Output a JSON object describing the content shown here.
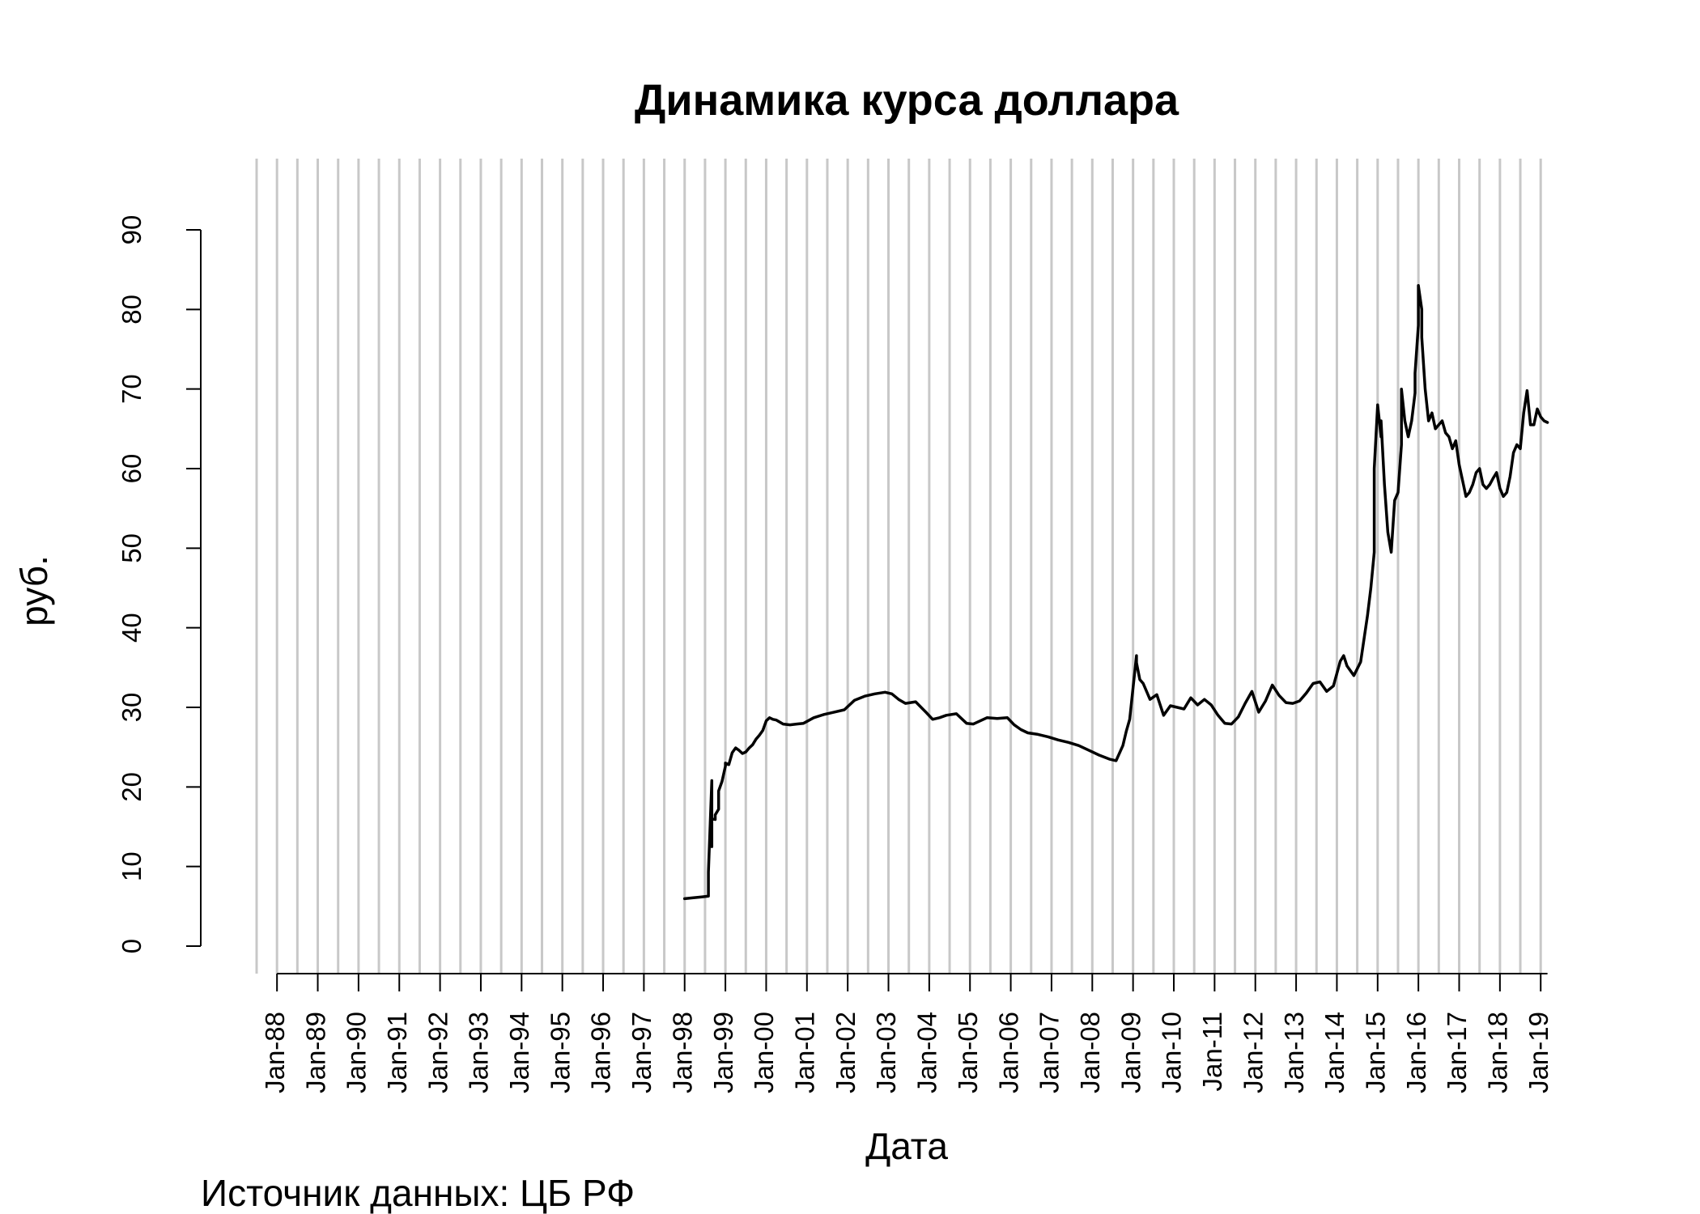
{
  "chart_data": {
    "type": "line",
    "title": "Динамика курса доллара",
    "xlabel": "Дата",
    "ylabel": "руб.",
    "caption": "Источник данных: ЦБ РФ",
    "ylim": [
      0,
      90
    ],
    "yticks": [
      0,
      10,
      20,
      30,
      40,
      50,
      60,
      70,
      80,
      90
    ],
    "xlim": [
      "1987-07",
      "2019-05"
    ],
    "x_axis_range": [
      "1988-01",
      "2019-03"
    ],
    "xticks": [
      "Jan-88",
      "Jan-89",
      "Jan-90",
      "Jan-91",
      "Jan-92",
      "Jan-93",
      "Jan-94",
      "Jan-95",
      "Jan-96",
      "Jan-97",
      "Jan-98",
      "Jan-99",
      "Jan-00",
      "Jan-01",
      "Jan-02",
      "Jan-03",
      "Jan-04",
      "Jan-05",
      "Jan-06",
      "Jan-07",
      "Jan-08",
      "Jan-09",
      "Jan-10",
      "Jan-11",
      "Jan-12",
      "Jan-13",
      "Jan-14",
      "Jan-15",
      "Jan-16",
      "Jan-17",
      "Jan-18",
      "Jan-19"
    ],
    "grid": "vertical lines every 6 months",
    "colors": {
      "line": "#000000",
      "grid": "#c8c8c8",
      "axis": "#000000"
    },
    "series": [
      {
        "x": [
          "1998-01",
          "1998-03",
          "1998-06",
          "1998-08",
          "1998-08",
          "1998-08",
          "1998-09",
          "1998-09",
          "1998-09",
          "1998-10",
          "1998-10",
          "1998-11",
          "1998-11",
          "1998-12",
          "1999-01",
          "1999-01",
          "1999-02",
          "1999-03",
          "1999-04",
          "1999-05",
          "1999-06",
          "1999-07",
          "1999-08",
          "1999-09",
          "1999-10",
          "1999-11",
          "1999-12",
          "2000-01",
          "2000-02",
          "2000-03",
          "2000-04",
          "2000-06",
          "2000-08",
          "2000-10",
          "2000-12",
          "2001-03",
          "2001-06",
          "2001-09",
          "2001-12",
          "2002-03",
          "2002-06",
          "2002-09",
          "2002-12",
          "2003-02",
          "2003-04",
          "2003-06",
          "2003-09",
          "2003-12",
          "2004-02",
          "2004-04",
          "2004-06",
          "2004-09",
          "2004-12",
          "2005-02",
          "2005-04",
          "2005-06",
          "2005-09",
          "2005-12",
          "2006-02",
          "2006-04",
          "2006-06",
          "2006-09",
          "2006-12",
          "2007-03",
          "2007-06",
          "2007-09",
          "2007-12",
          "2008-03",
          "2008-06",
          "2008-08",
          "2008-10",
          "2008-11",
          "2008-12",
          "2009-01",
          "2009-02",
          "2009-02",
          "2009-03",
          "2009-04",
          "2009-06",
          "2009-08",
          "2009-10",
          "2009-12",
          "2010-02",
          "2010-04",
          "2010-06",
          "2010-08",
          "2010-10",
          "2010-12",
          "2011-02",
          "2011-04",
          "2011-06",
          "2011-08",
          "2011-10",
          "2011-12",
          "2012-02",
          "2012-04",
          "2012-06",
          "2012-08",
          "2012-10",
          "2012-12",
          "2013-02",
          "2013-04",
          "2013-06",
          "2013-08",
          "2013-10",
          "2013-12",
          "2014-02",
          "2014-03",
          "2014-04",
          "2014-06",
          "2014-08",
          "2014-10",
          "2014-11",
          "2014-12",
          "2014-12",
          "2015-01",
          "2015-02",
          "2015-02",
          "2015-03",
          "2015-04",
          "2015-05",
          "2015-06",
          "2015-07",
          "2015-08",
          "2015-08",
          "2015-09",
          "2015-10",
          "2015-11",
          "2015-12",
          "2015-12",
          "2016-01",
          "2016-01",
          "2016-02",
          "2016-02",
          "2016-03",
          "2016-04",
          "2016-05",
          "2016-06",
          "2016-07",
          "2016-08",
          "2016-09",
          "2016-10",
          "2016-11",
          "2016-12",
          "2017-01",
          "2017-02",
          "2017-03",
          "2017-04",
          "2017-05",
          "2017-06",
          "2017-07",
          "2017-08",
          "2017-09",
          "2017-10",
          "2017-11",
          "2017-12",
          "2018-01",
          "2018-02",
          "2018-03",
          "2018-04",
          "2018-05",
          "2018-06",
          "2018-07",
          "2018-08",
          "2018-09",
          "2018-10",
          "2018-11",
          "2018-12",
          "2019-01",
          "2019-02",
          "2019-03"
        ],
        "values": [
          5.96,
          6.05,
          6.18,
          6.28,
          7.9,
          9.3,
          20.8,
          12.5,
          16.0,
          15.9,
          16.5,
          17.2,
          19.5,
          20.7,
          22.6,
          23.0,
          22.8,
          24.3,
          24.9,
          24.6,
          24.2,
          24.4,
          24.9,
          25.3,
          26.0,
          26.5,
          27.1,
          28.3,
          28.7,
          28.5,
          28.4,
          27.9,
          27.8,
          27.9,
          28.0,
          28.7,
          29.1,
          29.4,
          29.7,
          30.9,
          31.4,
          31.7,
          31.9,
          31.7,
          31.0,
          30.5,
          30.7,
          29.4,
          28.5,
          28.7,
          29.0,
          29.2,
          28.0,
          27.9,
          28.3,
          28.7,
          28.6,
          28.7,
          27.8,
          27.2,
          26.8,
          26.6,
          26.3,
          25.9,
          25.6,
          25.2,
          24.6,
          24.0,
          23.5,
          23.3,
          25.2,
          27.0,
          28.5,
          32.5,
          36.5,
          35.6,
          33.5,
          33.0,
          31.0,
          31.6,
          29.0,
          30.2,
          30.0,
          29.8,
          31.2,
          30.3,
          31.0,
          30.3,
          29.0,
          28.0,
          27.9,
          28.8,
          30.5,
          32.0,
          29.4,
          30.8,
          32.8,
          31.5,
          30.6,
          30.5,
          30.8,
          31.8,
          33.0,
          33.2,
          32.0,
          32.7,
          35.8,
          36.5,
          35.2,
          34.0,
          35.7,
          41.5,
          45.0,
          49.5,
          60.0,
          68.0,
          64.0,
          66.0,
          58.0,
          52.0,
          49.5,
          56.0,
          57.0,
          63.0,
          70.0,
          66.0,
          64.0,
          66.0,
          69.5,
          72.0,
          78.0,
          83.0,
          80.0,
          76.5,
          70.0,
          66.0,
          67.0,
          65.0,
          65.5,
          66.0,
          64.5,
          64.0,
          62.5,
          63.5,
          60.5,
          58.5,
          56.5,
          57.0,
          58.0,
          59.5,
          60.0,
          58.0,
          57.5,
          58.0,
          58.8,
          59.5,
          57.5,
          56.5,
          57.0,
          59.0,
          62.0,
          63.0,
          62.5,
          67.0,
          69.8,
          65.5,
          65.5,
          67.5,
          66.5,
          66.0,
          65.8
        ]
      }
    ]
  }
}
